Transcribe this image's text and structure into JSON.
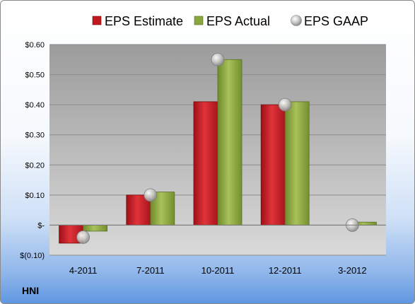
{
  "ticker": "HNI",
  "colors": {
    "estimate": "#c0181f",
    "actual": "#8aa63c",
    "gaap": "#bfbfbf"
  },
  "chart_data": {
    "type": "bar",
    "categories": [
      "4-2011",
      "7-2011",
      "10-2011",
      "12-2011",
      "3-2012"
    ],
    "series": [
      {
        "name": "EPS Estimate",
        "values": [
          -0.06,
          0.1,
          0.41,
          0.4,
          null
        ]
      },
      {
        "name": "EPS Actual",
        "values": [
          -0.02,
          0.11,
          0.55,
          0.41,
          0.01
        ]
      },
      {
        "name": "EPS GAAP",
        "values": [
          -0.04,
          0.1,
          0.55,
          0.4,
          0.0
        ]
      }
    ],
    "ylim": [
      -0.1,
      0.6
    ],
    "yticks": [
      {
        "value": 0.6,
        "label": "$0.60"
      },
      {
        "value": 0.5,
        "label": "$0.50"
      },
      {
        "value": 0.4,
        "label": "$0.40"
      },
      {
        "value": 0.3,
        "label": "$0.30"
      },
      {
        "value": 0.2,
        "label": "$0.20"
      },
      {
        "value": 0.1,
        "label": "$0.10"
      },
      {
        "value": 0.0,
        "label": "$-"
      },
      {
        "value": -0.1,
        "label": "$(0.10)"
      }
    ],
    "grid": true,
    "legend_position": "top"
  }
}
